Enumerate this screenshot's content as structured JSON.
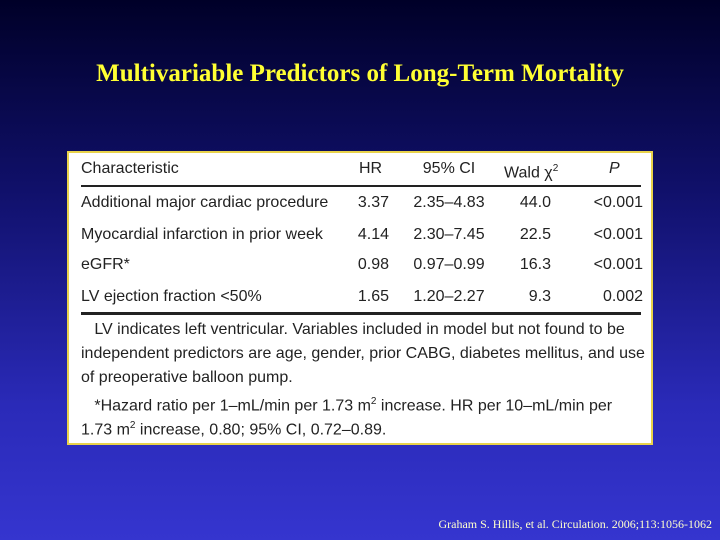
{
  "slide": {
    "title": "Multivariable Predictors of Long-Term Mortality",
    "citation": "Graham S. Hillis, et al. Circulation. 2006;113:1056-1062"
  },
  "table": {
    "headers": {
      "characteristic": "Characteristic",
      "hr": "HR",
      "ci": "95% CI",
      "wald": "Wald χ",
      "wald_sup": "2",
      "p": "P"
    },
    "rows": [
      {
        "characteristic": "Additional major cardiac procedure",
        "hr": "3.37",
        "ci": "2.35–4.83",
        "wald": "44.0",
        "p": "<0.001"
      },
      {
        "characteristic": "Myocardial infarction in prior week",
        "hr": "4.14",
        "ci": "2.30–7.45",
        "wald": "22.5",
        "p": "<0.001"
      },
      {
        "characteristic": "eGFR*",
        "hr": "0.98",
        "ci": "0.97–0.99",
        "wald": "16.3",
        "p": "<0.001"
      },
      {
        "characteristic": "LV ejection fraction <50%",
        "hr": "1.65",
        "ci": "1.20–2.27",
        "wald": "9.3",
        "p": "0.002"
      }
    ],
    "footnote_lines": [
      "   LV indicates left ventricular. Variables included in model but not found to be",
      "independent predictors are age, gender, prior CABG, diabetes mellitus, and use",
      "of preoperative balloon pump.",
      "   *Hazard ratio per 1–mL/min per 1.73 m",
      "2",
      " increase. HR per 10–mL/min per",
      "1.73 m",
      "2",
      " increase, 0.80; 95% CI, 0.72–0.89."
    ]
  }
}
